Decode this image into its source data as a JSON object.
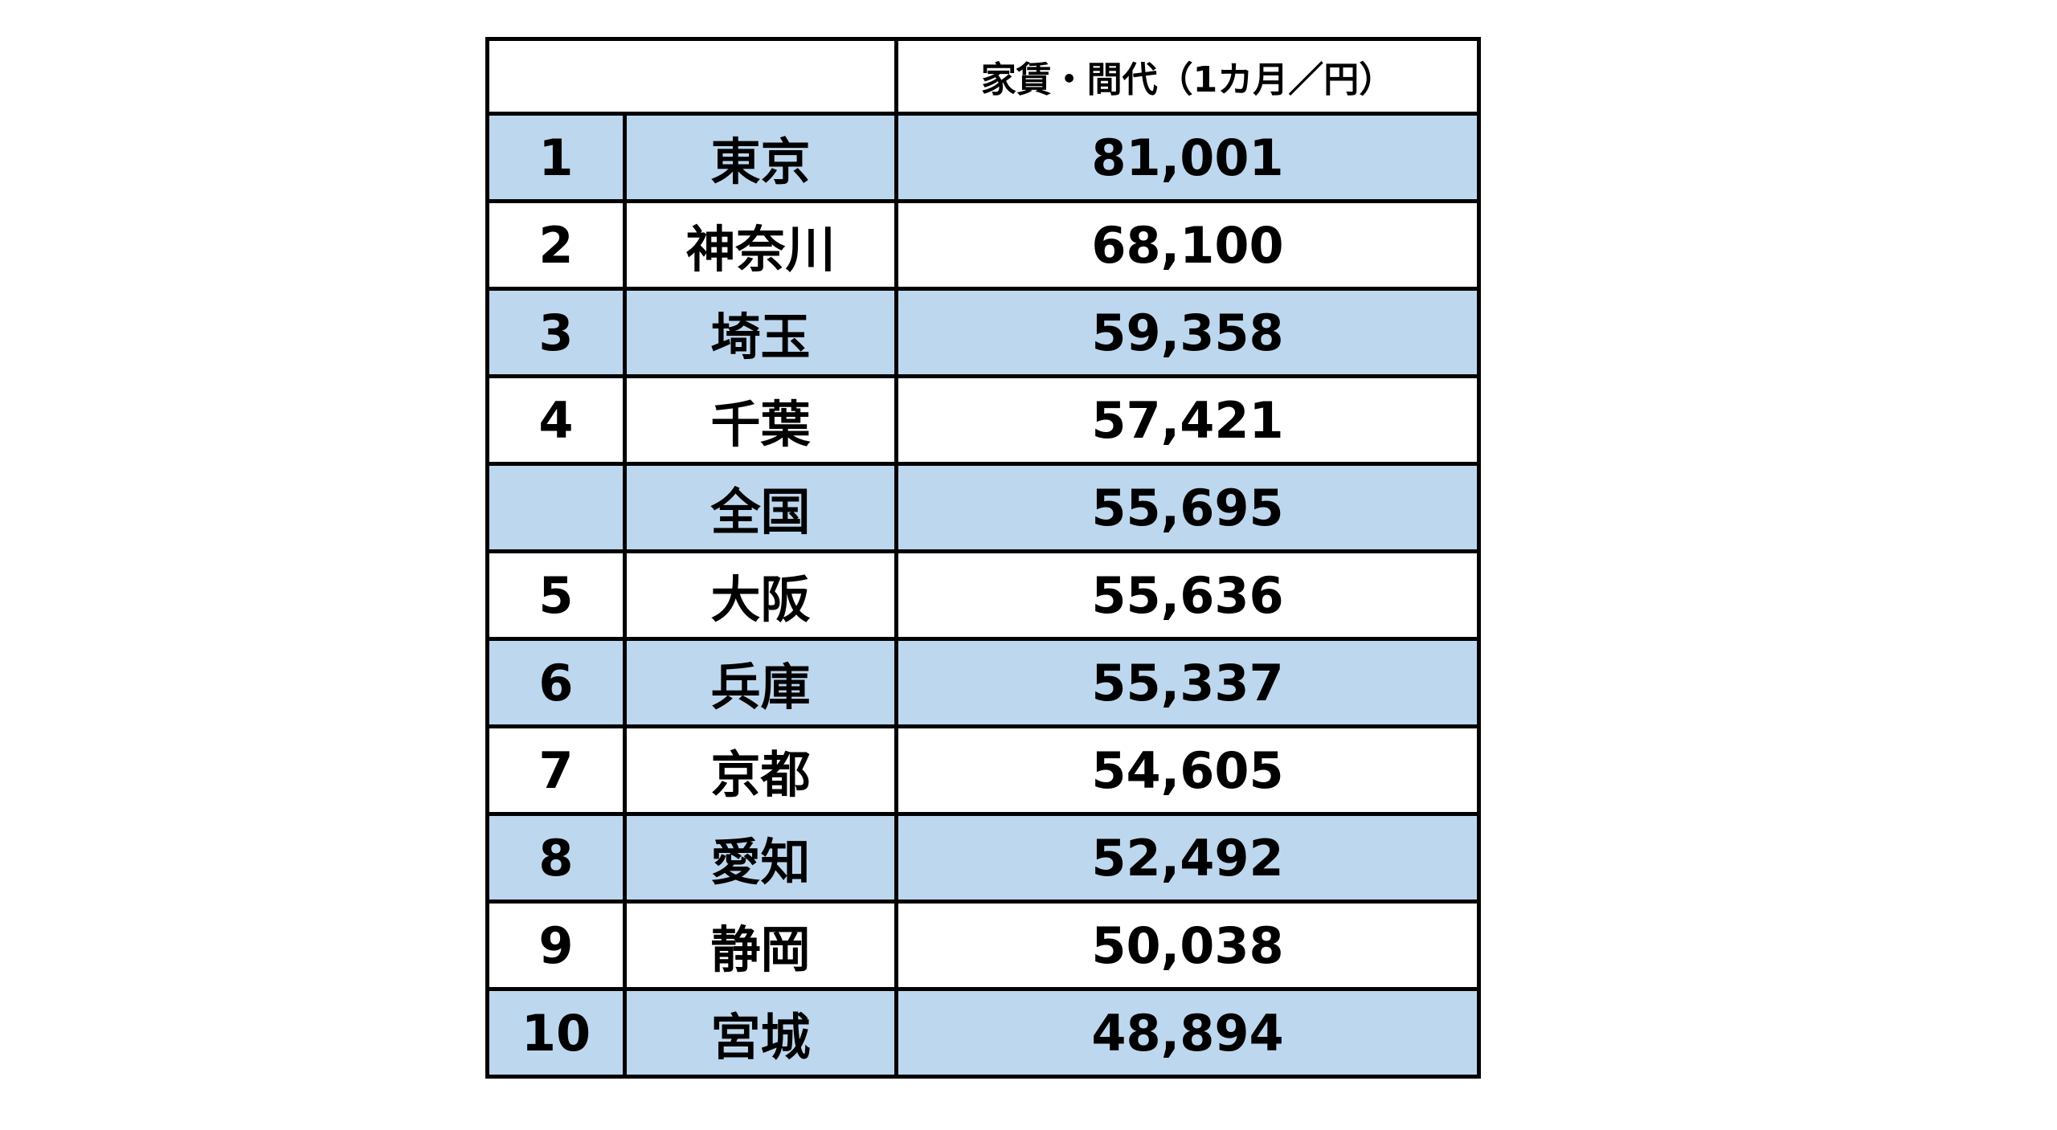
{
  "table": {
    "header": "家賃・間代（1カ月／円）",
    "rows": [
      [
        1,
        "東京",
        "81,001"
      ],
      [
        2,
        "神奈川",
        "68,100"
      ],
      [
        3,
        "埼玉",
        "59,358"
      ],
      [
        4,
        "千葉",
        "57,421"
      ],
      [
        null,
        "全国",
        "55,695"
      ],
      [
        5,
        "大阪",
        "55,636"
      ],
      [
        6,
        "兵庫",
        "55,337"
      ],
      [
        7,
        "京都",
        "54,605"
      ],
      [
        8,
        "愛知",
        "52,492"
      ],
      [
        9,
        "静岡",
        "50,038"
      ],
      [
        10,
        "宮城",
        "48,894"
      ]
    ]
  }
}
